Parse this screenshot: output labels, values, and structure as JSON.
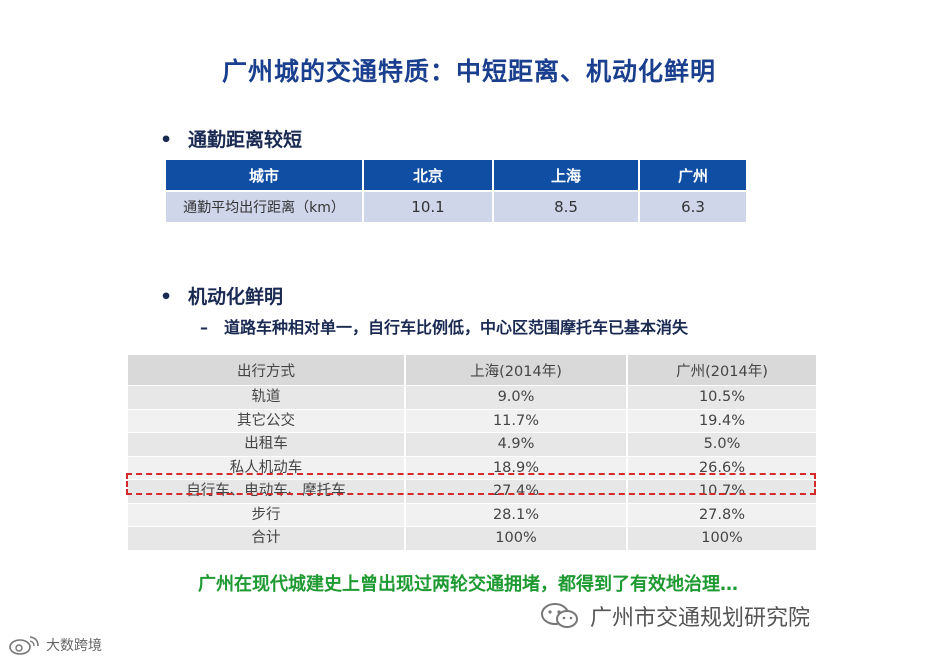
{
  "title": "广州城的交通特质：中短距离、机动化鲜明",
  "section1": {
    "bullet": "通勤距离较短",
    "table": {
      "headers": [
        "城市",
        "北京",
        "上海",
        "广州"
      ],
      "row": [
        "通勤平均出行距离（km）",
        "10.1",
        "8.5",
        "6.3"
      ]
    }
  },
  "section2": {
    "bullet": "机动化鲜明",
    "sub": "道路车种相对单一，自行车比例低，中心区范围摩托车已基本消失",
    "table": {
      "headers": [
        "出行方式",
        "上海(2014年)",
        "广州(2014年)"
      ],
      "rows": [
        [
          "轨道",
          "9.0%",
          "10.5%"
        ],
        [
          "其它公交",
          "11.7%",
          "19.4%"
        ],
        [
          "出租车",
          "4.9%",
          "5.0%"
        ],
        [
          "私人机动车",
          "18.9%",
          "26.6%"
        ],
        [
          "自行车、电动车、摩托车",
          "27.4%",
          "10.7%"
        ],
        [
          "步行",
          "28.1%",
          "27.8%"
        ],
        [
          "合计",
          "100%",
          "100%"
        ]
      ]
    }
  },
  "bottom_note": "广州在现代城建史上曾出现过两轮交通拥堵，都得到了有效地治理…",
  "brand": {
    "text": "广州市交通规划研究院",
    "icon": "wechat-icon"
  },
  "watermark": {
    "text": "大数跨境",
    "icon": "weibo-icon"
  },
  "bullet_symbol": "•",
  "dash_symbol": "–",
  "colors": {
    "title": "#1b3f8f",
    "table1_header": "#0f4ea2",
    "highlight": "#d42a2a",
    "note": "#1f9a32"
  }
}
